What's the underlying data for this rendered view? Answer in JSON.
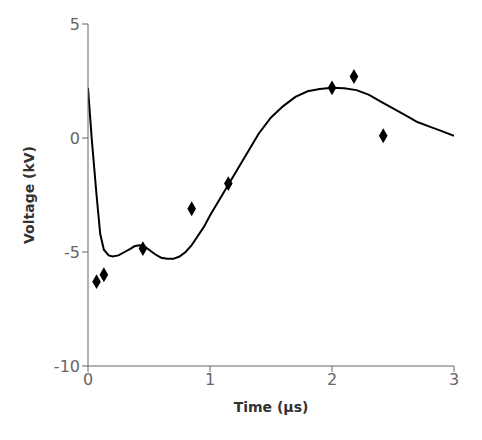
{
  "chart_data": {
    "type": "line",
    "xlabel": "Time (μs)",
    "ylabel": "Voltage (kV)",
    "xlim": [
      0,
      3
    ],
    "ylim": [
      -10,
      5
    ],
    "xticks": [
      0,
      1,
      2,
      3
    ],
    "yticks": [
      -10,
      -5,
      0,
      5
    ],
    "grid": false,
    "series": [
      {
        "type": "line",
        "color": "#000000",
        "line_style": "solid",
        "x": [
          0.0,
          0.03,
          0.07,
          0.1,
          0.13,
          0.17,
          0.2,
          0.25,
          0.3,
          0.35,
          0.38,
          0.42,
          0.46,
          0.5,
          0.55,
          0.6,
          0.65,
          0.7,
          0.75,
          0.8,
          0.85,
          0.9,
          0.95,
          1.0,
          1.1,
          1.2,
          1.3,
          1.4,
          1.5,
          1.6,
          1.7,
          1.8,
          1.9,
          2.0,
          2.1,
          2.2,
          2.3,
          2.4,
          2.5,
          2.6,
          2.7,
          2.8,
          2.9,
          3.0
        ],
        "values": [
          2.2,
          0.0,
          -2.5,
          -4.2,
          -4.9,
          -5.15,
          -5.2,
          -5.15,
          -5.0,
          -4.85,
          -4.75,
          -4.7,
          -4.75,
          -4.9,
          -5.1,
          -5.25,
          -5.3,
          -5.3,
          -5.2,
          -5.0,
          -4.7,
          -4.3,
          -3.9,
          -3.4,
          -2.5,
          -1.6,
          -0.7,
          0.2,
          0.9,
          1.4,
          1.8,
          2.05,
          2.15,
          2.2,
          2.18,
          2.1,
          1.9,
          1.6,
          1.3,
          1.0,
          0.7,
          0.5,
          0.3,
          0.1
        ]
      },
      {
        "type": "scatter",
        "color": "#000000",
        "marker": "diamond",
        "x": [
          0.07,
          0.13,
          0.45,
          0.85,
          1.15,
          2.0,
          2.18,
          2.42
        ],
        "values": [
          -6.3,
          -6.0,
          -4.85,
          -3.1,
          -2.0,
          2.2,
          2.7,
          0.1
        ]
      }
    ]
  }
}
